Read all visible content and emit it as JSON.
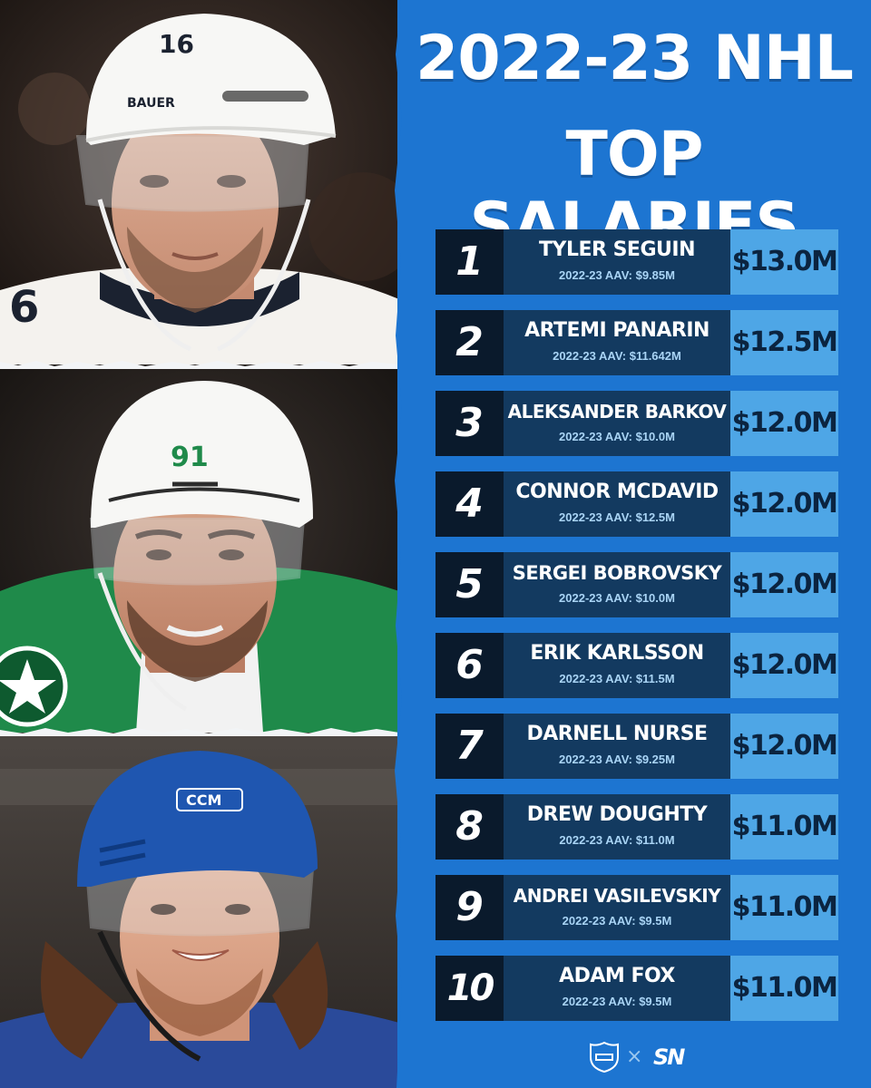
{
  "title_line1": "2022-23 NHL",
  "title_line2": "TOP SALARIES",
  "players": [
    {
      "rank": "1",
      "name": "TYLER SEGUIN",
      "aav": "2022-23 AAV: $9.85M",
      "salary": "$13.0M"
    },
    {
      "rank": "2",
      "name": "ARTEMI PANARIN",
      "aav": "2022-23 AAV: $11.642M",
      "salary": "$12.5M"
    },
    {
      "rank": "3",
      "name": "ALEKSANDER BARKOV",
      "aav": "2022-23 AAV: $10.0M",
      "salary": "$12.0M"
    },
    {
      "rank": "4",
      "name": "CONNOR MCDAVID",
      "aav": "2022-23 AAV: $12.5M",
      "salary": "$12.0M"
    },
    {
      "rank": "5",
      "name": "SERGEI BOBROVSKY",
      "aav": "2022-23 AAV: $10.0M",
      "salary": "$12.0M"
    },
    {
      "rank": "6",
      "name": "ERIK KARLSSON",
      "aav": "2022-23 AAV: $11.5M",
      "salary": "$12.0M"
    },
    {
      "rank": "7",
      "name": "DARNELL NURSE",
      "aav": "2022-23 AAV: $9.25M",
      "salary": "$12.0M"
    },
    {
      "rank": "8",
      "name": "DREW DOUGHTY",
      "aav": "2022-23 AAV: $11.0M",
      "salary": "$11.0M"
    },
    {
      "rank": "9",
      "name": "ANDREI VASILEVSKIY",
      "aav": "2022-23 AAV: $9.5M",
      "salary": "$11.0M"
    },
    {
      "rank": "10",
      "name": "ADAM FOX",
      "aav": "2022-23 AAV: $9.5M",
      "salary": "$11.0M"
    }
  ],
  "photos": {
    "top": {
      "helmet_number": "16",
      "helmet_brand": "BAUER"
    },
    "middle": {
      "helmet_number": "91"
    },
    "bottom": {
      "helmet_brand": "CCM"
    }
  },
  "footer": {
    "x_mark": "×",
    "partner_logo": "SN"
  },
  "icons": [
    "nhl-shield-icon",
    "sn-logo-icon"
  ],
  "colors": {
    "panel_blue": "#1d75d1",
    "rank_bg": "#0a1a2c",
    "name_bg": "#133a60",
    "salary_bg": "#4ea6e6",
    "aav_text": "#a9d4f5"
  }
}
